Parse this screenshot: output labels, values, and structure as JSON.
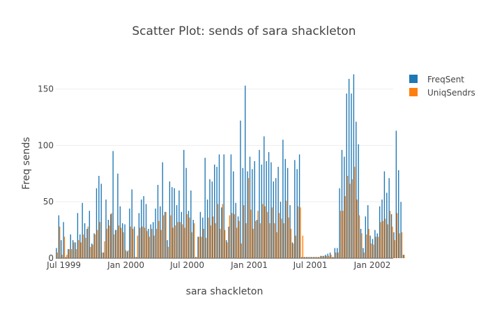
{
  "chart_data": {
    "type": "bar",
    "title": "Scatter Plot: sends of sara shackleton",
    "xlabel": "sara shackleton",
    "ylabel": "Freq sends",
    "x_start": "1999-06-07",
    "x_end": "2002-03-04",
    "x_tick_labels": [
      {
        "date": "1999-07-01",
        "label": "Jul 1999"
      },
      {
        "date": "2000-01-01",
        "label": "Jan 2000"
      },
      {
        "date": "2000-07-01",
        "label": "Jul 2000"
      },
      {
        "date": "2001-01-01",
        "label": "Jan 2001"
      },
      {
        "date": "2001-07-01",
        "label": "Jul 2001"
      },
      {
        "date": "2002-01-01",
        "label": "Jan 2002"
      }
    ],
    "ylim": [
      0,
      172
    ],
    "y_ticks": [
      0,
      50,
      100,
      150
    ],
    "grid": true,
    "legend_position": "top-right",
    "series": [
      {
        "name": "FreqSent",
        "color": "#1f77b4",
        "values": [
          9,
          38,
          16,
          32,
          1,
          8,
          21,
          16,
          14,
          40,
          21,
          49,
          31,
          26,
          42,
          13,
          22,
          62,
          73,
          66,
          5,
          52,
          34,
          39,
          95,
          25,
          75,
          46,
          31,
          30,
          6,
          44,
          61,
          28,
          1,
          40,
          52,
          55,
          48,
          26,
          30,
          32,
          44,
          65,
          46,
          85,
          41,
          16,
          68,
          63,
          62,
          47,
          60,
          41,
          96,
          80,
          42,
          60,
          34,
          1,
          19,
          41,
          36,
          89,
          52,
          70,
          68,
          83,
          81,
          92,
          45,
          92,
          16,
          28,
          92,
          77,
          49,
          37,
          122,
          80,
          153,
          77,
          90,
          79,
          86,
          34,
          96,
          83,
          108,
          86,
          94,
          85,
          68,
          71,
          81,
          50,
          105,
          88,
          80,
          47,
          14,
          87,
          79,
          92,
          1,
          1,
          1,
          1,
          1,
          1,
          1,
          1,
          2,
          2,
          3,
          4,
          5,
          1,
          9,
          9,
          62,
          96,
          90,
          146,
          159,
          146,
          163,
          121,
          101,
          26,
          9,
          37,
          47,
          20,
          17,
          25,
          22,
          46,
          52,
          77,
          58,
          71,
          39,
          23,
          113,
          78,
          50,
          3
        ]
      },
      {
        "name": "UniqSendrs",
        "color": "#ff7f0e",
        "values": [
          5,
          28,
          3,
          19,
          3,
          8,
          8,
          14,
          8,
          16,
          14,
          21,
          18,
          28,
          10,
          12,
          21,
          25,
          32,
          5,
          15,
          26,
          29,
          40,
          21,
          25,
          29,
          27,
          23,
          7,
          7,
          28,
          26,
          1,
          20,
          27,
          28,
          27,
          24,
          19,
          26,
          20,
          26,
          33,
          25,
          38,
          41,
          10,
          38,
          27,
          29,
          32,
          32,
          30,
          27,
          39,
          36,
          23,
          31,
          1,
          19,
          19,
          26,
          18,
          36,
          29,
          37,
          31,
          48,
          26,
          48,
          25,
          14,
          38,
          40,
          39,
          27,
          33,
          13,
          47,
          31,
          71,
          43,
          26,
          33,
          42,
          31,
          48,
          46,
          41,
          31,
          45,
          31,
          23,
          40,
          35,
          31,
          51,
          36,
          26,
          13,
          20,
          46,
          45,
          20,
          1,
          1,
          1,
          1,
          1,
          1,
          1,
          2,
          2,
          2,
          2,
          3,
          1,
          5,
          5,
          42,
          42,
          55,
          73,
          66,
          70,
          81,
          52,
          38,
          22,
          5,
          21,
          26,
          13,
          12,
          19,
          19,
          32,
          33,
          35,
          30,
          42,
          28,
          16,
          40,
          22,
          23,
          3
        ]
      }
    ]
  }
}
